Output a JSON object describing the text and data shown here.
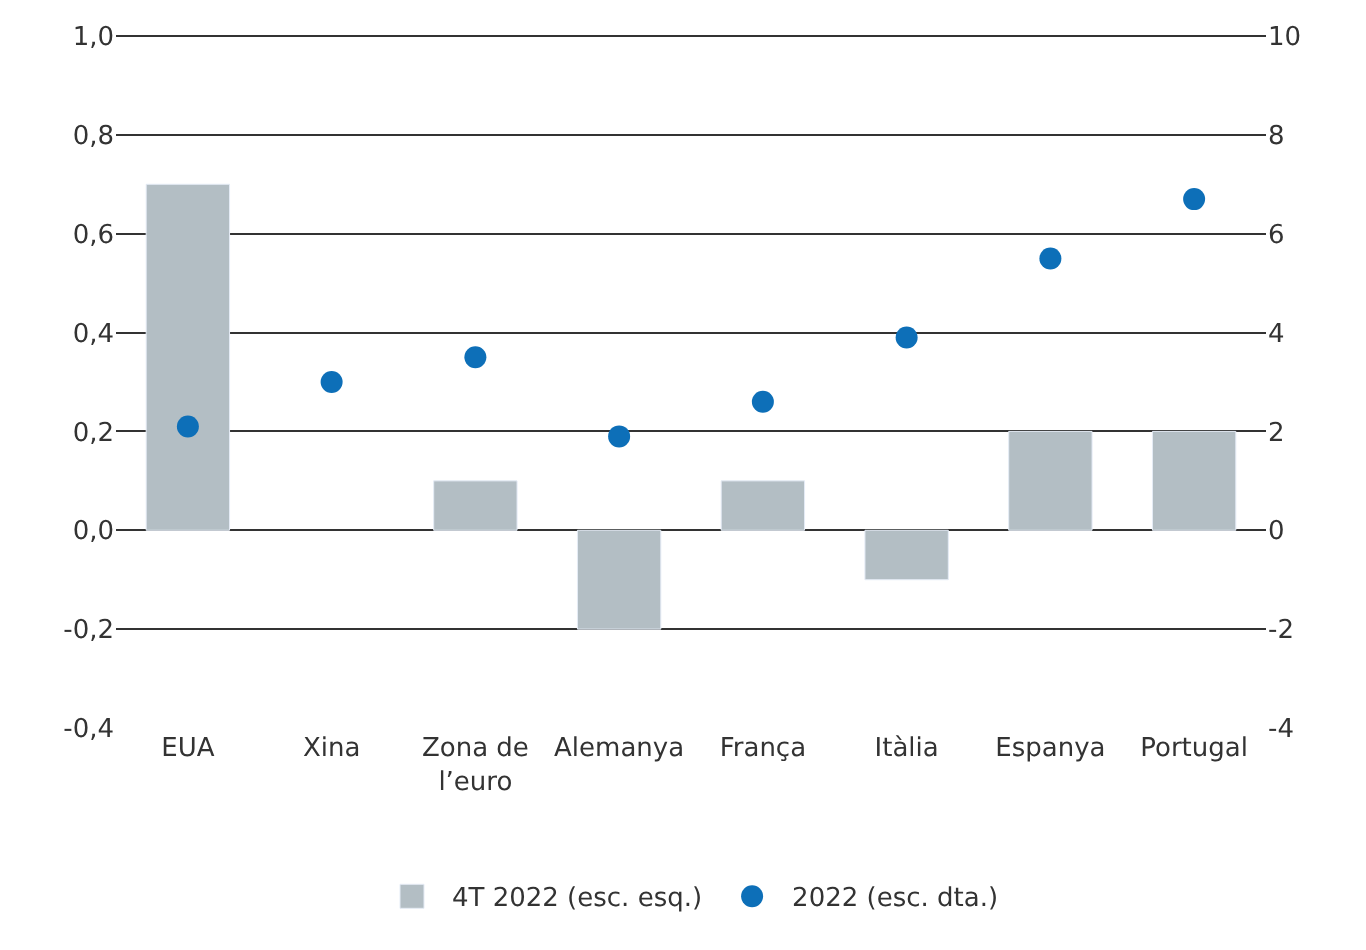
{
  "chart_data": {
    "type": "bar",
    "categories": [
      "EUA",
      "Xina",
      "Zona de\nl’euro",
      "Alemanya",
      "França",
      "Itàlia",
      "Espanya",
      "Portugal"
    ],
    "series": [
      {
        "name": "4T 2022 (esc. esq.)",
        "color": "#b3bec4",
        "values": [
          0.7,
          null,
          0.1,
          -0.2,
          0.1,
          -0.1,
          0.2,
          0.2
        ]
      },
      {
        "name": "2022 (esc. dta.)",
        "type": "scatter",
        "axis": "y2",
        "color": "#0d6fb8",
        "values": [
          2.1,
          3.0,
          3.5,
          1.9,
          2.6,
          3.9,
          5.5,
          6.7
        ]
      }
    ],
    "ylim": [
      -0.4,
      1.0
    ],
    "yticks": [
      {
        "value": -0.4,
        "label": "-0,4"
      },
      {
        "value": -0.2,
        "label": "-0,2"
      },
      {
        "value": 0,
        "label": "0,0"
      },
      {
        "value": 0.2,
        "label": "0,2"
      },
      {
        "value": 0.4,
        "label": "0,4"
      },
      {
        "value": 0.6,
        "label": "0,6"
      },
      {
        "value": 0.8,
        "label": "0,8"
      },
      {
        "value": 1.0,
        "label": "1,0"
      }
    ],
    "y2lim": [
      -4,
      10
    ],
    "y2ticks": [
      -4,
      -2,
      0,
      2,
      4,
      6,
      8,
      10
    ],
    "grid": "y",
    "legend": "bottom",
    "marker": "circle"
  }
}
